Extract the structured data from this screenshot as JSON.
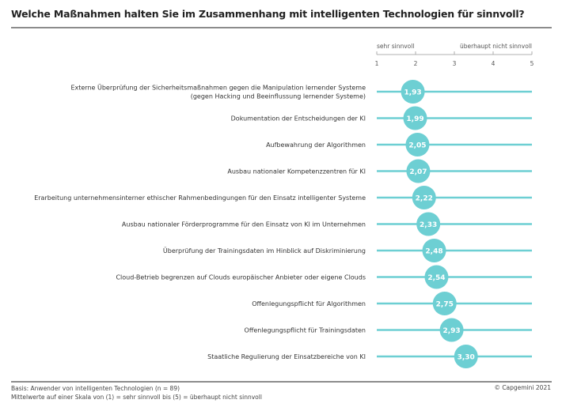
{
  "header": {
    "title": "Welche Maßnahmen halten Sie im Zusammenhang mit intelligenten Technologien für sinnvoll?"
  },
  "footer": {
    "basis": "Basis: Anwender von intelligenten Technologien (n = 89)",
    "scale_note": "Mittelwerte auf einer Skala von (1) = sehr sinnvoll bis (5) = überhaupt nicht sinnvoll",
    "copyright": "© Capgemini 2021"
  },
  "colors": {
    "accent": "#6dcfd3",
    "rule": "#8c8c8c"
  },
  "chart_data": {
    "type": "scatter",
    "title": "Welche Maßnahmen halten Sie im Zusammenhang mit intelligenten Technologien für sinnvoll?",
    "xlabel": "",
    "ylabel": "",
    "xlim": [
      1,
      5
    ],
    "x_ticks": [
      "1",
      "2",
      "3",
      "4",
      "5"
    ],
    "scale_left_label": "sehr sinnvoll",
    "scale_right_label": "überhaupt nicht sinnvoll",
    "grid": false,
    "legend": "none",
    "items": [
      {
        "label": [
          "Externe Überprüfung der Sicherheitsmaßnahmen gegen die Manipulation lernender Systeme",
          "(gegen Hacking und Beeinflussung lernender Systeme)"
        ],
        "value": 1.93,
        "value_label": "1,93"
      },
      {
        "label": [
          "Dokumentation der Entscheidungen der KI"
        ],
        "value": 1.99,
        "value_label": "1,99"
      },
      {
        "label": [
          "Aufbewahrung der Algorithmen"
        ],
        "value": 2.05,
        "value_label": "2,05"
      },
      {
        "label": [
          "Ausbau nationaler Kompetenzzentren für KI"
        ],
        "value": 2.07,
        "value_label": "2,07"
      },
      {
        "label": [
          "Erarbeitung unternehmensinterner ethischer Rahmenbedingungen für den Einsatz intelligenter Systeme"
        ],
        "value": 2.22,
        "value_label": "2,22"
      },
      {
        "label": [
          "Ausbau nationaler Förderprogramme für den Einsatz von KI im Unternehmen"
        ],
        "value": 2.33,
        "value_label": "2,33"
      },
      {
        "label": [
          "Überprüfung der Trainingsdaten im Hinblick auf Diskriminierung"
        ],
        "value": 2.48,
        "value_label": "2,48"
      },
      {
        "label": [
          "Cloud-Betrieb begrenzen auf Clouds europäischer Anbieter oder eigene Clouds"
        ],
        "value": 2.54,
        "value_label": "2,54"
      },
      {
        "label": [
          "Offenlegungspflicht für Algorithmen"
        ],
        "value": 2.75,
        "value_label": "2,75"
      },
      {
        "label": [
          "Offenlegungspflicht für Trainingsdaten"
        ],
        "value": 2.93,
        "value_label": "2,93"
      },
      {
        "label": [
          "Staatliche Regulierung der Einsatzbereiche von KI"
        ],
        "value": 3.3,
        "value_label": "3,30"
      }
    ]
  }
}
